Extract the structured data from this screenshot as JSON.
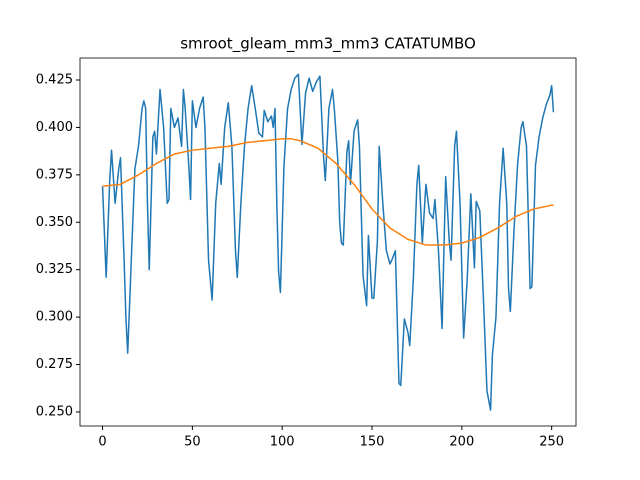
{
  "chart_data": {
    "type": "line",
    "title": "smroot_gleam_mm3_mm3 CATATUMBO",
    "xlim": [
      -12.55,
      263.55
    ],
    "ylim": [
      0.2426,
      0.4366
    ],
    "xticks": [
      0,
      50,
      100,
      150,
      200,
      250
    ],
    "yticks": [
      {
        "value": 0.25,
        "label": "0.250"
      },
      {
        "value": 0.275,
        "label": "0.275"
      },
      {
        "value": 0.3,
        "label": "0.300"
      },
      {
        "value": 0.325,
        "label": "0.325"
      },
      {
        "value": 0.35,
        "label": "0.350"
      },
      {
        "value": 0.375,
        "label": "0.375"
      },
      {
        "value": 0.4,
        "label": "0.400"
      },
      {
        "value": 0.425,
        "label": "0.425"
      }
    ],
    "series": [
      {
        "color": "#1f77b4",
        "x": [
          0,
          2,
          4,
          5,
          7,
          9,
          10,
          12,
          13,
          14,
          16,
          18,
          20,
          22,
          23,
          24,
          25,
          26,
          28,
          29,
          30,
          32,
          34,
          36,
          37,
          38,
          40,
          42,
          44,
          45,
          46,
          48,
          49,
          50,
          52,
          54,
          56,
          57,
          59,
          61,
          63,
          65,
          66,
          68,
          70,
          72,
          74,
          75,
          77,
          79,
          81,
          83,
          85,
          87,
          89,
          90,
          92,
          94,
          95,
          96,
          97,
          98,
          99,
          101,
          103,
          105,
          107,
          109,
          111,
          113,
          115,
          117,
          119,
          121,
          123,
          124,
          126,
          128,
          129,
          131,
          132,
          133,
          134,
          136,
          137,
          138,
          140,
          142,
          143,
          145,
          147,
          148,
          150,
          151,
          153,
          154,
          156,
          158,
          160,
          161,
          163,
          165,
          166,
          168,
          170,
          171,
          173,
          175,
          176,
          178,
          180,
          182,
          184,
          185,
          187,
          189,
          191,
          193,
          194,
          196,
          197,
          199,
          201,
          203,
          205,
          207,
          208,
          210,
          212,
          214,
          216,
          217,
          219,
          221,
          223,
          225,
          226,
          227,
          229,
          231,
          233,
          234,
          236,
          238,
          239,
          241,
          243,
          245,
          247,
          249,
          250,
          251
        ],
        "values": [
          0.369,
          0.321,
          0.372,
          0.388,
          0.36,
          0.378,
          0.384,
          0.33,
          0.3,
          0.281,
          0.33,
          0.378,
          0.39,
          0.41,
          0.414,
          0.41,
          0.36,
          0.325,
          0.395,
          0.398,
          0.386,
          0.42,
          0.4,
          0.36,
          0.362,
          0.41,
          0.4,
          0.405,
          0.39,
          0.42,
          0.41,
          0.38,
          0.362,
          0.414,
          0.4,
          0.41,
          0.416,
          0.4,
          0.33,
          0.309,
          0.36,
          0.381,
          0.37,
          0.4,
          0.413,
          0.39,
          0.335,
          0.321,
          0.36,
          0.39,
          0.41,
          0.422,
          0.41,
          0.397,
          0.395,
          0.409,
          0.403,
          0.406,
          0.4,
          0.41,
          0.36,
          0.324,
          0.313,
          0.38,
          0.41,
          0.42,
          0.426,
          0.428,
          0.391,
          0.418,
          0.426,
          0.419,
          0.424,
          0.427,
          0.385,
          0.372,
          0.41,
          0.42,
          0.41,
          0.382,
          0.35,
          0.339,
          0.338,
          0.387,
          0.393,
          0.37,
          0.398,
          0.404,
          0.39,
          0.322,
          0.306,
          0.343,
          0.31,
          0.31,
          0.34,
          0.39,
          0.36,
          0.335,
          0.328,
          0.33,
          0.335,
          0.265,
          0.264,
          0.299,
          0.292,
          0.285,
          0.32,
          0.37,
          0.38,
          0.339,
          0.37,
          0.355,
          0.352,
          0.362,
          0.335,
          0.294,
          0.374,
          0.34,
          0.33,
          0.39,
          0.398,
          0.36,
          0.289,
          0.32,
          0.365,
          0.326,
          0.361,
          0.356,
          0.31,
          0.261,
          0.251,
          0.28,
          0.3,
          0.36,
          0.389,
          0.36,
          0.315,
          0.303,
          0.345,
          0.38,
          0.4,
          0.403,
          0.39,
          0.315,
          0.316,
          0.38,
          0.395,
          0.405,
          0.412,
          0.417,
          0.422,
          0.408
        ]
      },
      {
        "color": "#ff7f0e",
        "x": [
          0,
          10,
          20,
          30,
          40,
          50,
          60,
          70,
          80,
          90,
          100,
          105,
          110,
          120,
          130,
          140,
          150,
          160,
          170,
          180,
          190,
          200,
          210,
          220,
          230,
          240,
          250,
          251
        ],
        "values": [
          0.369,
          0.37,
          0.375,
          0.381,
          0.386,
          0.388,
          0.389,
          0.39,
          0.392,
          0.393,
          0.394,
          0.394,
          0.393,
          0.389,
          0.381,
          0.37,
          0.357,
          0.347,
          0.341,
          0.338,
          0.338,
          0.339,
          0.342,
          0.347,
          0.353,
          0.357,
          0.359,
          0.359
        ]
      }
    ]
  }
}
